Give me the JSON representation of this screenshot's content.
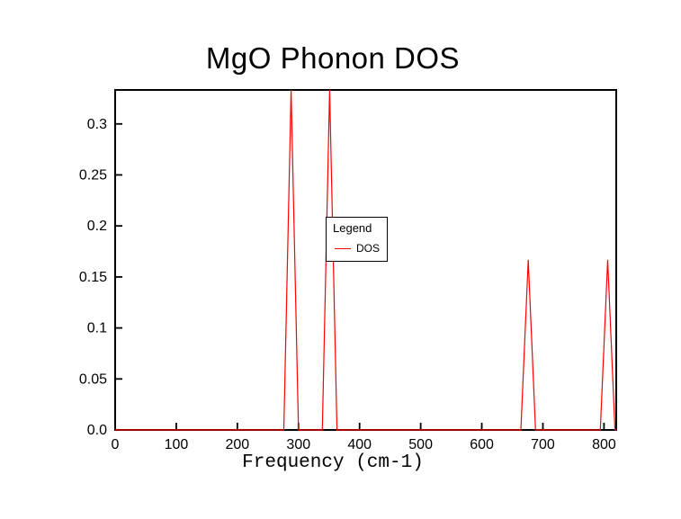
{
  "chart_data": {
    "type": "line",
    "title": "MgO Phonon DOS",
    "xlabel": "Frequency (cm-1)",
    "ylabel": "",
    "xlim": [
      0,
      820
    ],
    "ylim": [
      0,
      0.3333
    ],
    "grid": false,
    "axis_color": "#000000",
    "background_color": "#ffffff",
    "xticks": [
      {
        "value": 0,
        "label": "0"
      },
      {
        "value": 100,
        "label": "100"
      },
      {
        "value": 200,
        "label": "200"
      },
      {
        "value": 300,
        "label": "300"
      },
      {
        "value": 400,
        "label": "400"
      },
      {
        "value": 500,
        "label": "500"
      },
      {
        "value": 600,
        "label": "600"
      },
      {
        "value": 700,
        "label": "700"
      },
      {
        "value": 800,
        "label": "800"
      }
    ],
    "yticks": [
      {
        "value": 0,
        "label": "0.0"
      },
      {
        "value": 0.05,
        "label": "0.05"
      },
      {
        "value": 0.1,
        "label": "0.1"
      },
      {
        "value": 0.15,
        "label": "0.15"
      },
      {
        "value": 0.2,
        "label": "0.2"
      },
      {
        "value": 0.25,
        "label": "0.25"
      },
      {
        "value": 0.3,
        "label": "0.3"
      }
    ],
    "series": [
      {
        "name": "DOS",
        "color": "#ff0000",
        "points": [
          [
            0,
            0
          ],
          [
            276,
            0
          ],
          [
            288,
            0.3333
          ],
          [
            300,
            0
          ],
          [
            339,
            0
          ],
          [
            351,
            0.3333
          ],
          [
            363,
            0
          ],
          [
            664,
            0
          ],
          [
            676,
            0.1667
          ],
          [
            688,
            0
          ],
          [
            794,
            0
          ],
          [
            806,
            0.1667
          ],
          [
            818,
            0
          ],
          [
            820,
            0
          ]
        ]
      }
    ],
    "peaks": [
      {
        "frequency": 288,
        "height": 0.3333
      },
      {
        "frequency": 351,
        "height": 0.3333
      },
      {
        "frequency": 676,
        "height": 0.1667
      },
      {
        "frequency": 806,
        "height": 0.1667
      }
    ],
    "legend": {
      "title": "Legend",
      "position": "center",
      "entries": [
        {
          "label": "DOS",
          "color": "#ff0000"
        }
      ]
    }
  }
}
